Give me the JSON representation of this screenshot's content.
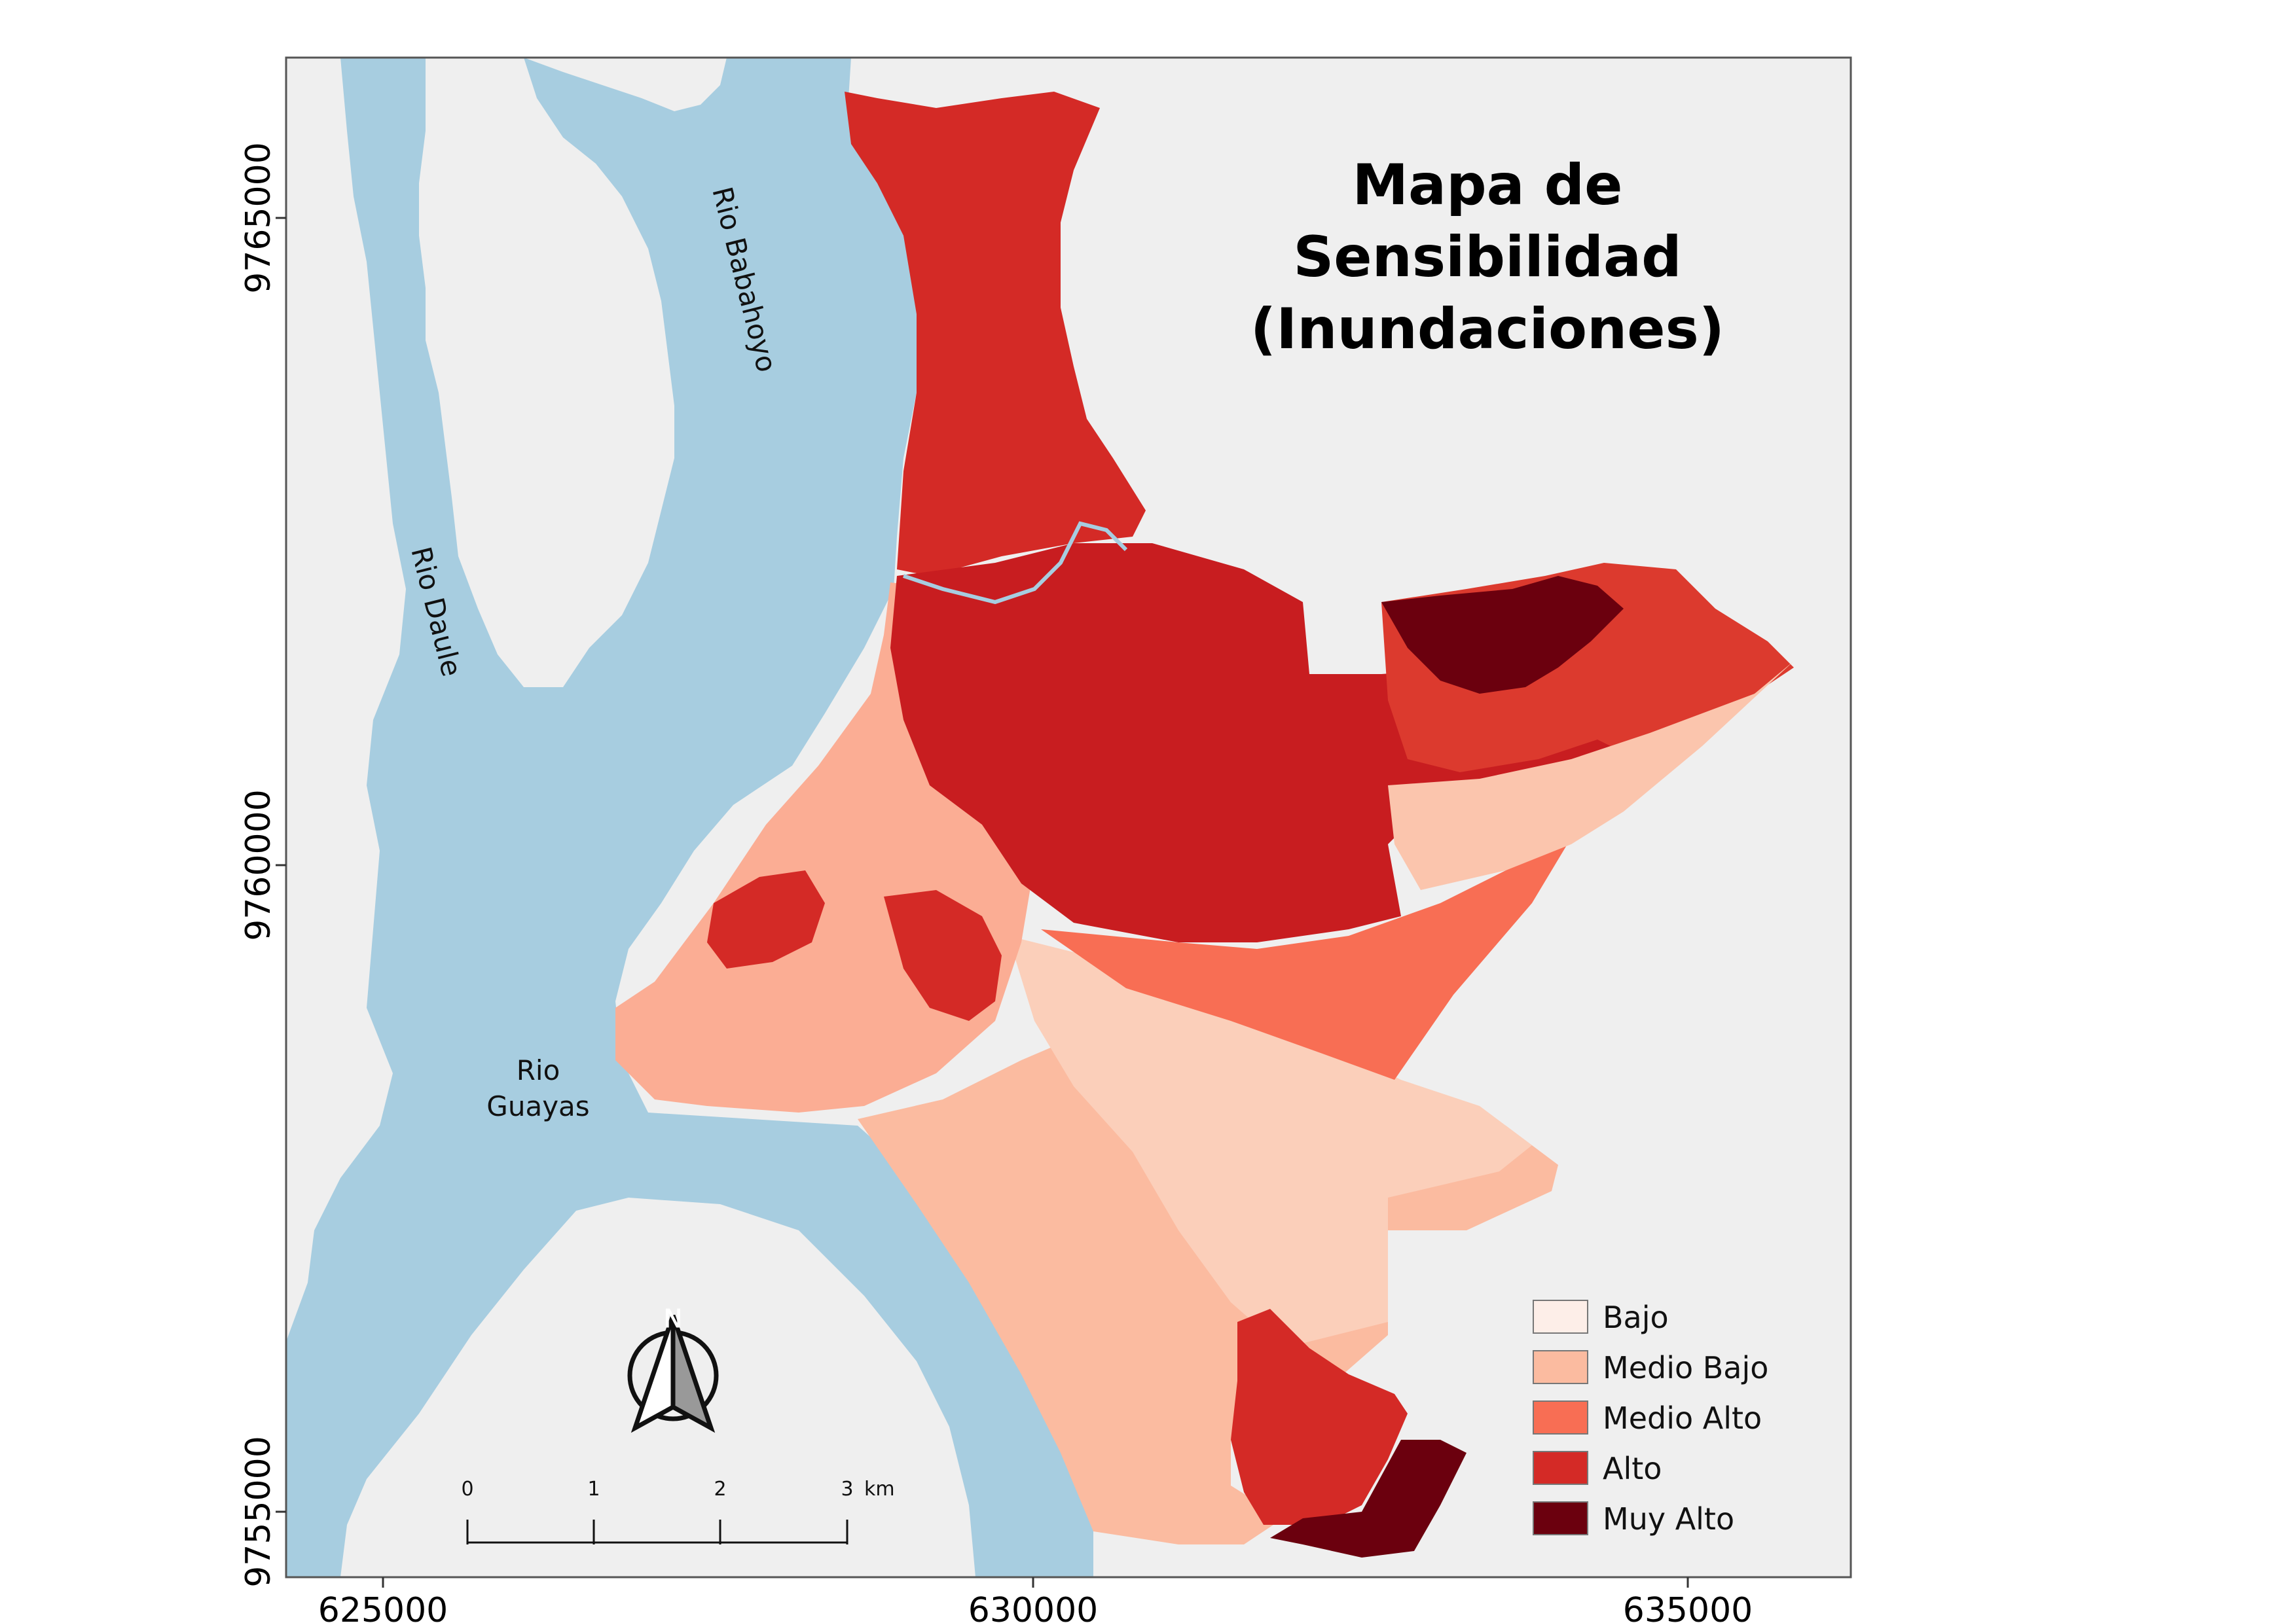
{
  "title": {
    "line1": "Mapa de",
    "line2": "Sensibilidad",
    "line3": "(Inundaciones)"
  },
  "rivers": [
    {
      "id": "babahoyo",
      "label": "Rio Babahoyo"
    },
    {
      "id": "daule",
      "label": "Rio Daule"
    },
    {
      "id": "guayas_1",
      "label": "Rio"
    },
    {
      "id": "guayas_2",
      "label": "Guayas"
    }
  ],
  "axes": {
    "x_ticks": [
      "625000",
      "630000",
      "635000"
    ],
    "y_ticks": [
      "9765000",
      "9760000",
      "9755000"
    ]
  },
  "north_arrow": {
    "label": "N",
    "icon": "north-arrow-icon"
  },
  "scale_bar": {
    "ticks": [
      "0",
      "1",
      "2",
      "3"
    ],
    "unit": "km"
  },
  "legend": {
    "items": [
      {
        "label": "Bajo",
        "color": "#fdeee8"
      },
      {
        "label": "Medio Bajo",
        "color": "#fbbba0"
      },
      {
        "label": "Medio Alto",
        "color": "#f86e54"
      },
      {
        "label": "Alto",
        "color": "#d42a26"
      },
      {
        "label": "Muy Alto",
        "color": "#6b000e"
      }
    ]
  },
  "colors": {
    "water": "#a7cde0",
    "land": "#efefef",
    "frame": "#555555"
  }
}
